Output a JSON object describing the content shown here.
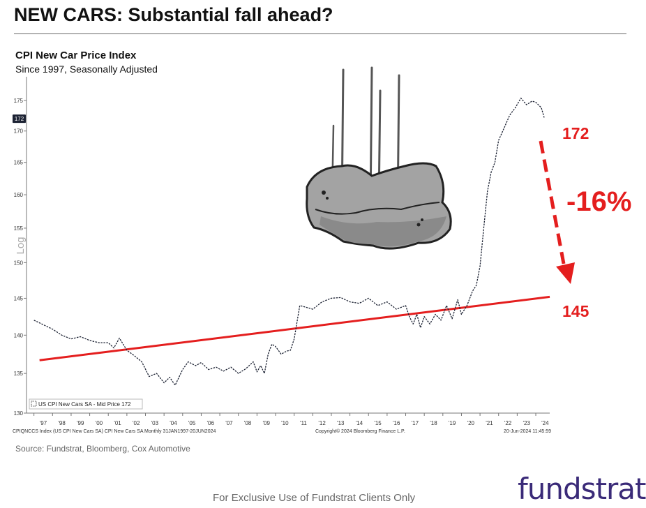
{
  "header": {
    "title": "NEW CARS: Substantial fall ahead?"
  },
  "footer": {
    "source": "Source: Fundstrat, Bloomberg, Cox Automotive",
    "disclaimer": "For Exclusive Use of Fundstrat Clients Only",
    "brand": "fundstrat"
  },
  "chart_data": {
    "type": "line",
    "title": "CPI New Car Price Index",
    "subtitle": "Since 1997, Seasonally Adjusted",
    "ylabel": "Log",
    "y_scale": "log",
    "ylim": [
      130,
      179
    ],
    "y_ticks": [
      130,
      135,
      140,
      145,
      150,
      155,
      160,
      165,
      170,
      175
    ],
    "x_ticks": [
      "'97",
      "'98",
      "'99",
      "'00",
      "'01",
      "'02",
      "'03",
      "'04",
      "'05",
      "'06",
      "'07",
      "'08",
      "'09",
      "'10",
      "'11",
      "'12",
      "'13",
      "'14",
      "'15",
      "'16",
      "'17",
      "'18",
      "'19",
      "'20",
      "'21",
      "'22",
      "'23",
      "'24"
    ],
    "grid": false,
    "legend_label": "US CPI New Cars SA - Mid Price 172",
    "last_price_tag": "172",
    "bloomberg_left": "CPIQNCCS Index (US CPI New Cars SA) CPI New Cars SA  Monthly 31JAN1997-20JUN2024",
    "bloomberg_center": "Copyright© 2024 Bloomberg Finance L.P.",
    "bloomberg_right": "20-Jun-2024 11:45:59",
    "series": [
      {
        "name": "US CPI New Cars SA",
        "color": "#1c2233",
        "style": "dashed",
        "x": [
          1997.0,
          1997.5,
          1998.0,
          1998.5,
          1999.0,
          1999.5,
          2000.0,
          2000.5,
          2001.0,
          2001.3,
          2001.6,
          2002.0,
          2002.4,
          2002.8,
          2003.2,
          2003.6,
          2004.0,
          2004.3,
          2004.6,
          2005.0,
          2005.3,
          2005.7,
          2006.0,
          2006.4,
          2006.8,
          2007.2,
          2007.6,
          2008.0,
          2008.4,
          2008.8,
          2009.0,
          2009.2,
          2009.4,
          2009.6,
          2009.8,
          2010.0,
          2010.3,
          2010.6,
          2010.8,
          2011.0,
          2011.3,
          2011.6,
          2012.0,
          2012.5,
          2013.0,
          2013.5,
          2014.0,
          2014.5,
          2015.0,
          2015.5,
          2016.0,
          2016.5,
          2017.0,
          2017.2,
          2017.4,
          2017.6,
          2017.8,
          2018.0,
          2018.3,
          2018.6,
          2018.9,
          2019.2,
          2019.5,
          2019.8,
          2020.0,
          2020.3,
          2020.6,
          2020.8,
          2021.0,
          2021.2,
          2021.4,
          2021.6,
          2021.8,
          2022.0,
          2022.3,
          2022.6,
          2022.9,
          2023.2,
          2023.5,
          2023.8,
          2024.0,
          2024.3,
          2024.45
        ],
        "values": [
          142.0,
          141.4,
          140.8,
          140.0,
          139.5,
          139.8,
          139.3,
          139.0,
          139.0,
          138.3,
          139.6,
          138.0,
          137.3,
          136.5,
          134.6,
          135.0,
          133.8,
          134.5,
          133.5,
          135.5,
          136.5,
          136.0,
          136.4,
          135.5,
          135.8,
          135.3,
          135.8,
          135.0,
          135.6,
          136.5,
          135.2,
          136.0,
          135.0,
          137.5,
          138.8,
          138.5,
          137.5,
          137.9,
          138.0,
          139.5,
          144.0,
          143.8,
          143.5,
          144.5,
          145.0,
          145.1,
          144.5,
          144.3,
          145.0,
          144.0,
          144.5,
          143.5,
          144.0,
          142.5,
          141.5,
          142.8,
          141.0,
          142.5,
          141.5,
          142.8,
          142.0,
          144.0,
          142.2,
          144.8,
          142.8,
          144.0,
          146.0,
          146.8,
          149.5,
          155.0,
          160.5,
          163.5,
          165.0,
          168.5,
          170.5,
          172.6,
          173.8,
          175.4,
          174.3,
          174.9,
          174.7,
          173.8,
          172.2
        ]
      },
      {
        "name": "Trend",
        "color": "#e41e1e",
        "x": [
          1997.3,
          2024.75
        ],
        "values": [
          136.7,
          145.2
        ]
      }
    ],
    "annotations": {
      "start_label": "172",
      "end_label": "145",
      "change_label": "-16%",
      "arrow_color": "#e41e1e"
    }
  }
}
